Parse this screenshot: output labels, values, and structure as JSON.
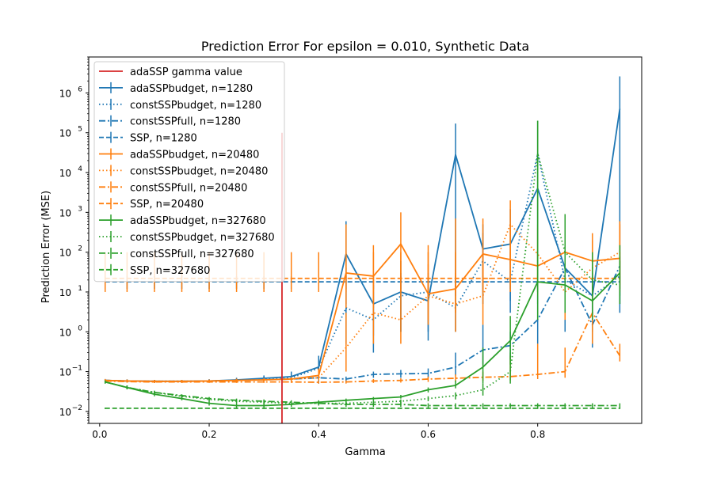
{
  "chart_data": {
    "type": "line",
    "title": "Prediction Error For epsilon = 0.010, Synthetic Data",
    "xlabel": "Gamma",
    "ylabel": "Prediction Error (MSE)",
    "xscale": "linear",
    "yscale": "log",
    "xlim": [
      -0.02,
      0.99
    ],
    "ylim": [
      0.005,
      8000000
    ],
    "xticks": [
      0.0,
      0.2,
      0.4,
      0.6,
      0.8
    ],
    "xtick_labels": [
      "0.0",
      "0.2",
      "0.4",
      "0.6",
      "0.8"
    ],
    "yticks": [
      0.01,
      0.1,
      1,
      10,
      100,
      1000,
      10000,
      100000,
      1000000
    ],
    "ytick_labels": [
      "10",
      "10",
      "10",
      "10",
      "10",
      "10",
      "10",
      "10",
      "10"
    ],
    "ytick_exponents": [
      "−2",
      "−1",
      "0",
      "1",
      "2",
      "3",
      "4",
      "5",
      "6"
    ],
    "grid": false,
    "legend_position": "upper left",
    "vline": {
      "label": "adaSSP gamma value",
      "x": 0.333,
      "y_top": 100000,
      "color": "#d62728"
    },
    "x": [
      0.01,
      0.05,
      0.1,
      0.15,
      0.2,
      0.25,
      0.3,
      0.35,
      0.4,
      0.45,
      0.5,
      0.55,
      0.6,
      0.65,
      0.7,
      0.75,
      0.8,
      0.85,
      0.9,
      0.95
    ],
    "series": [
      {
        "name": "adaSSPbudget, n=1280",
        "color": "#1f77b4",
        "dash": "solid",
        "values": [
          0.06,
          0.058,
          0.057,
          0.057,
          0.058,
          0.062,
          0.068,
          0.075,
          0.13,
          90,
          5,
          10,
          6,
          28000,
          120,
          160,
          4000,
          40,
          8,
          400000
        ],
        "errlo": [
          0.055,
          0.054,
          0.053,
          0.053,
          0.053,
          0.056,
          0.06,
          0.06,
          0.05,
          5,
          0.8,
          1,
          0.6,
          8,
          8,
          6,
          5,
          1,
          1,
          5
        ],
        "errhi": [
          0.065,
          0.063,
          0.062,
          0.062,
          0.064,
          0.07,
          0.08,
          0.1,
          0.25,
          600,
          15,
          60,
          15,
          170000,
          500,
          1200,
          30000,
          700,
          30,
          2600000
        ]
      },
      {
        "name": "constSSPbudget, n=1280",
        "color": "#1f77b4",
        "dash": "dotted",
        "values": [
          0.06,
          0.058,
          0.057,
          0.057,
          0.058,
          0.06,
          0.065,
          0.07,
          0.12,
          4,
          2,
          8,
          10,
          4,
          60,
          18,
          30000,
          20,
          8,
          25
        ],
        "errlo": [
          0.055,
          0.053,
          0.052,
          0.052,
          0.053,
          0.055,
          0.058,
          0.06,
          0.05,
          0.5,
          0.3,
          1,
          1,
          1,
          5,
          3,
          50,
          3,
          2,
          3
        ],
        "errhi": [
          0.065,
          0.064,
          0.062,
          0.062,
          0.064,
          0.067,
          0.075,
          0.09,
          0.22,
          40,
          10,
          30,
          30,
          15,
          300,
          60,
          200000,
          100,
          30,
          80
        ]
      },
      {
        "name": "constSSPfull, n=1280",
        "color": "#1f77b4",
        "dash": "dashdot",
        "values": [
          0.06,
          0.058,
          0.057,
          0.057,
          0.058,
          0.06,
          0.062,
          0.065,
          0.07,
          0.065,
          0.085,
          0.088,
          0.09,
          0.13,
          0.35,
          0.45,
          2,
          40,
          1.5,
          45
        ],
        "errlo": [
          0.055,
          0.054,
          0.053,
          0.053,
          0.054,
          0.055,
          0.057,
          0.058,
          0.06,
          0.055,
          0.07,
          0.07,
          0.07,
          0.08,
          0.15,
          0.2,
          0.5,
          5,
          0.4,
          5
        ],
        "errhi": [
          0.065,
          0.063,
          0.062,
          0.062,
          0.063,
          0.066,
          0.068,
          0.072,
          0.08,
          0.075,
          0.1,
          0.11,
          0.12,
          0.3,
          1.5,
          1,
          8,
          200,
          10,
          150
        ]
      },
      {
        "name": "SSP, n=1280",
        "color": "#1f77b4",
        "dash": "dashed",
        "values": [
          18,
          18,
          18,
          18,
          18,
          18,
          18,
          18,
          18,
          18,
          18,
          18,
          18,
          18,
          18,
          18,
          18,
          18,
          18,
          18
        ],
        "errlo": [
          12,
          12,
          12,
          12,
          12,
          12,
          12,
          12,
          12,
          12,
          12,
          12,
          12,
          12,
          12,
          12,
          12,
          12,
          12,
          12
        ],
        "errhi": [
          25,
          25,
          25,
          25,
          25,
          25,
          25,
          25,
          25,
          25,
          25,
          25,
          25,
          25,
          25,
          25,
          25,
          25,
          25,
          25
        ]
      },
      {
        "name": "adaSSPbudget, n=20480",
        "color": "#ff7f0e",
        "dash": "solid",
        "values": [
          0.06,
          0.058,
          0.057,
          0.057,
          0.058,
          0.06,
          0.062,
          0.065,
          0.08,
          30,
          25,
          160,
          9,
          12,
          90,
          65,
          45,
          100,
          60,
          70
        ],
        "errlo": [
          0.055,
          0.053,
          0.052,
          0.052,
          0.053,
          0.055,
          0.057,
          0.058,
          0.06,
          4,
          4,
          15,
          2,
          3,
          15,
          15,
          8,
          12,
          10,
          12
        ],
        "errhi": [
          0.065,
          0.063,
          0.062,
          0.062,
          0.063,
          0.066,
          0.068,
          0.072,
          0.12,
          500,
          150,
          1000,
          150,
          700,
          700,
          500,
          500,
          800,
          300,
          600
        ]
      },
      {
        "name": "constSSPbudget, n=20480",
        "color": "#ff7f0e",
        "dash": "dotted",
        "values": [
          0.06,
          0.058,
          0.057,
          0.057,
          0.058,
          0.06,
          0.062,
          0.065,
          0.07,
          0.4,
          3,
          2,
          8,
          5,
          8,
          500,
          90,
          10,
          40,
          100
        ],
        "errlo": [
          0.055,
          0.053,
          0.052,
          0.052,
          0.053,
          0.055,
          0.057,
          0.058,
          0.06,
          0.1,
          0.5,
          0.5,
          1.5,
          1,
          1.5,
          50,
          15,
          2,
          5,
          15
        ],
        "errhi": [
          0.065,
          0.063,
          0.062,
          0.062,
          0.063,
          0.066,
          0.068,
          0.072,
          0.08,
          3,
          25,
          15,
          50,
          30,
          50,
          2000,
          400,
          80,
          200,
          500
        ]
      },
      {
        "name": "constSSPfull, n=20480",
        "color": "#ff7f0e",
        "dash": "dashdot",
        "values": [
          0.058,
          0.056,
          0.055,
          0.055,
          0.055,
          0.055,
          0.055,
          0.055,
          0.054,
          0.055,
          0.058,
          0.06,
          0.065,
          0.068,
          0.072,
          0.075,
          0.085,
          0.1,
          3,
          0.25
        ],
        "errlo": [
          0.055,
          0.053,
          0.052,
          0.052,
          0.052,
          0.052,
          0.052,
          0.052,
          0.05,
          0.05,
          0.052,
          0.053,
          0.055,
          0.056,
          0.058,
          0.06,
          0.065,
          0.07,
          0.5,
          0.18
        ],
        "errhi": [
          0.062,
          0.06,
          0.058,
          0.058,
          0.058,
          0.058,
          0.058,
          0.058,
          0.058,
          0.06,
          0.065,
          0.068,
          0.075,
          0.085,
          0.1,
          0.25,
          0.5,
          0.4,
          8,
          0.5
        ]
      },
      {
        "name": "SSP, n=20480",
        "color": "#ff7f0e",
        "dash": "dashed",
        "values": [
          22,
          22,
          22,
          22,
          22,
          22,
          22,
          22,
          22,
          22,
          22,
          22,
          22,
          22,
          22,
          22,
          22,
          22,
          22,
          22
        ],
        "errlo": [
          10,
          10,
          10,
          10,
          10,
          10,
          10,
          10,
          10,
          10,
          10,
          10,
          10,
          10,
          10,
          10,
          10,
          10,
          10,
          10
        ],
        "errhi": [
          100,
          100,
          100,
          100,
          100,
          100,
          100,
          100,
          100,
          100,
          100,
          100,
          100,
          100,
          100,
          100,
          100,
          100,
          100,
          100
        ]
      },
      {
        "name": "adaSSPbudget, n=327680",
        "color": "#2ca02c",
        "dash": "solid",
        "values": [
          0.055,
          0.04,
          0.027,
          0.021,
          0.016,
          0.014,
          0.014,
          0.015,
          0.017,
          0.019,
          0.021,
          0.023,
          0.035,
          0.045,
          0.13,
          0.6,
          18,
          15,
          6,
          30
        ],
        "errlo": [
          0.05,
          0.036,
          0.024,
          0.019,
          0.014,
          0.012,
          0.012,
          0.013,
          0.015,
          0.017,
          0.019,
          0.021,
          0.03,
          0.038,
          0.05,
          0.15,
          2,
          3,
          2,
          8
        ],
        "errhi": [
          0.06,
          0.045,
          0.03,
          0.023,
          0.018,
          0.016,
          0.016,
          0.017,
          0.019,
          0.021,
          0.023,
          0.026,
          0.04,
          0.06,
          0.4,
          2.5,
          200000,
          900,
          60,
          150
        ]
      },
      {
        "name": "constSSPbudget, n=327680",
        "color": "#2ca02c",
        "dash": "dotted",
        "values": [
          0.055,
          0.04,
          0.03,
          0.024,
          0.02,
          0.018,
          0.017,
          0.016,
          0.016,
          0.016,
          0.017,
          0.018,
          0.021,
          0.025,
          0.035,
          0.1,
          30000,
          100,
          20,
          15
        ],
        "errlo": [
          0.05,
          0.036,
          0.027,
          0.022,
          0.018,
          0.016,
          0.015,
          0.014,
          0.014,
          0.014,
          0.015,
          0.016,
          0.018,
          0.02,
          0.025,
          0.05,
          10,
          10,
          3,
          5
        ],
        "errhi": [
          0.06,
          0.045,
          0.033,
          0.026,
          0.022,
          0.02,
          0.019,
          0.018,
          0.018,
          0.018,
          0.019,
          0.02,
          0.024,
          0.03,
          0.05,
          0.3,
          200000,
          900,
          100,
          60
        ]
      },
      {
        "name": "constSSPfull, n=327680",
        "color": "#2ca02c",
        "dash": "dashdot",
        "values": [
          0.055,
          0.04,
          0.03,
          0.025,
          0.021,
          0.019,
          0.018,
          0.017,
          0.016,
          0.015,
          0.015,
          0.015,
          0.014,
          0.014,
          0.014,
          0.014,
          0.014,
          0.014,
          0.014,
          0.014
        ],
        "errlo": [
          0.05,
          0.036,
          0.027,
          0.023,
          0.019,
          0.017,
          0.016,
          0.015,
          0.014,
          0.013,
          0.013,
          0.013,
          0.012,
          0.012,
          0.012,
          0.012,
          0.012,
          0.012,
          0.012,
          0.012
        ],
        "errhi": [
          0.06,
          0.045,
          0.033,
          0.027,
          0.023,
          0.021,
          0.02,
          0.019,
          0.018,
          0.017,
          0.017,
          0.017,
          0.016,
          0.016,
          0.016,
          0.016,
          0.016,
          0.016,
          0.016,
          0.016
        ]
      },
      {
        "name": "SSP, n=327680",
        "color": "#2ca02c",
        "dash": "dashed",
        "values": [
          0.012,
          0.012,
          0.012,
          0.012,
          0.012,
          0.012,
          0.012,
          0.012,
          0.012,
          0.012,
          0.012,
          0.012,
          0.012,
          0.012,
          0.012,
          0.012,
          0.012,
          0.012,
          0.012,
          0.012
        ],
        "errlo": [
          0.0115,
          0.0115,
          0.0115,
          0.0115,
          0.0115,
          0.0115,
          0.0115,
          0.0115,
          0.0115,
          0.0115,
          0.0115,
          0.0115,
          0.0115,
          0.0115,
          0.0115,
          0.0115,
          0.0115,
          0.0115,
          0.0115,
          0.0115
        ],
        "errhi": [
          0.0125,
          0.0125,
          0.0125,
          0.0125,
          0.0125,
          0.0125,
          0.0125,
          0.0125,
          0.0125,
          0.0125,
          0.0125,
          0.0125,
          0.0125,
          0.0125,
          0.0125,
          0.0125,
          0.0125,
          0.0125,
          0.0125,
          0.0125
        ]
      }
    ]
  }
}
